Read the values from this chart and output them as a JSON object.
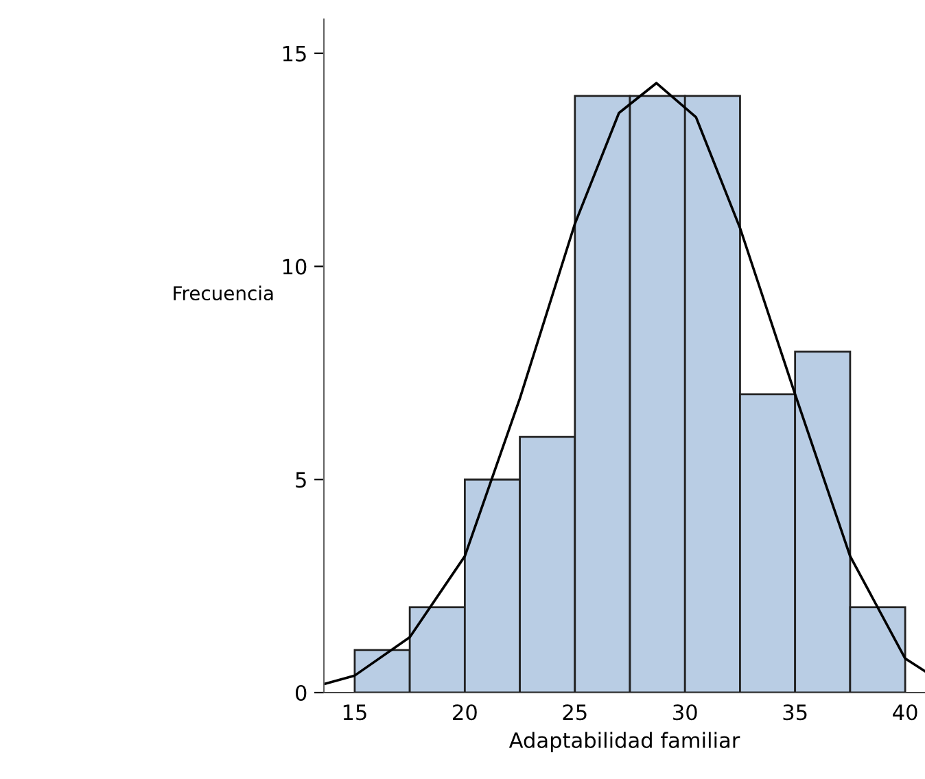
{
  "chart_data": {
    "type": "histogram",
    "xlabel": "Adaptabilidad familiar",
    "ylabel": "Frecuencia",
    "bins": [
      15,
      17.5,
      20,
      22.5,
      25,
      27.5,
      30,
      32.5,
      35,
      37.5,
      40
    ],
    "values": [
      1,
      2,
      5,
      6,
      14,
      14,
      14,
      7,
      8,
      2
    ],
    "color": "#b9cde4",
    "series": [
      {
        "type": "line",
        "color": "#000000",
        "x": [
          13.6,
          15,
          17.5,
          20,
          22.5,
          25,
          27,
          28.7,
          30.5,
          32.5,
          35,
          37.5,
          40,
          40.9
        ],
        "values": [
          0.2,
          0.4,
          1.3,
          3.2,
          6.9,
          11,
          13.6,
          14.3,
          13.5,
          10.9,
          7,
          3.2,
          0.8,
          0.5
        ]
      }
    ],
    "xlim": [
      13.6,
      40.9
    ],
    "ylim": [
      0,
      15.8
    ],
    "xticks": [
      15,
      20,
      25,
      30,
      35,
      40
    ],
    "yticks": [
      0,
      5,
      10,
      15
    ],
    "grid": false
  }
}
